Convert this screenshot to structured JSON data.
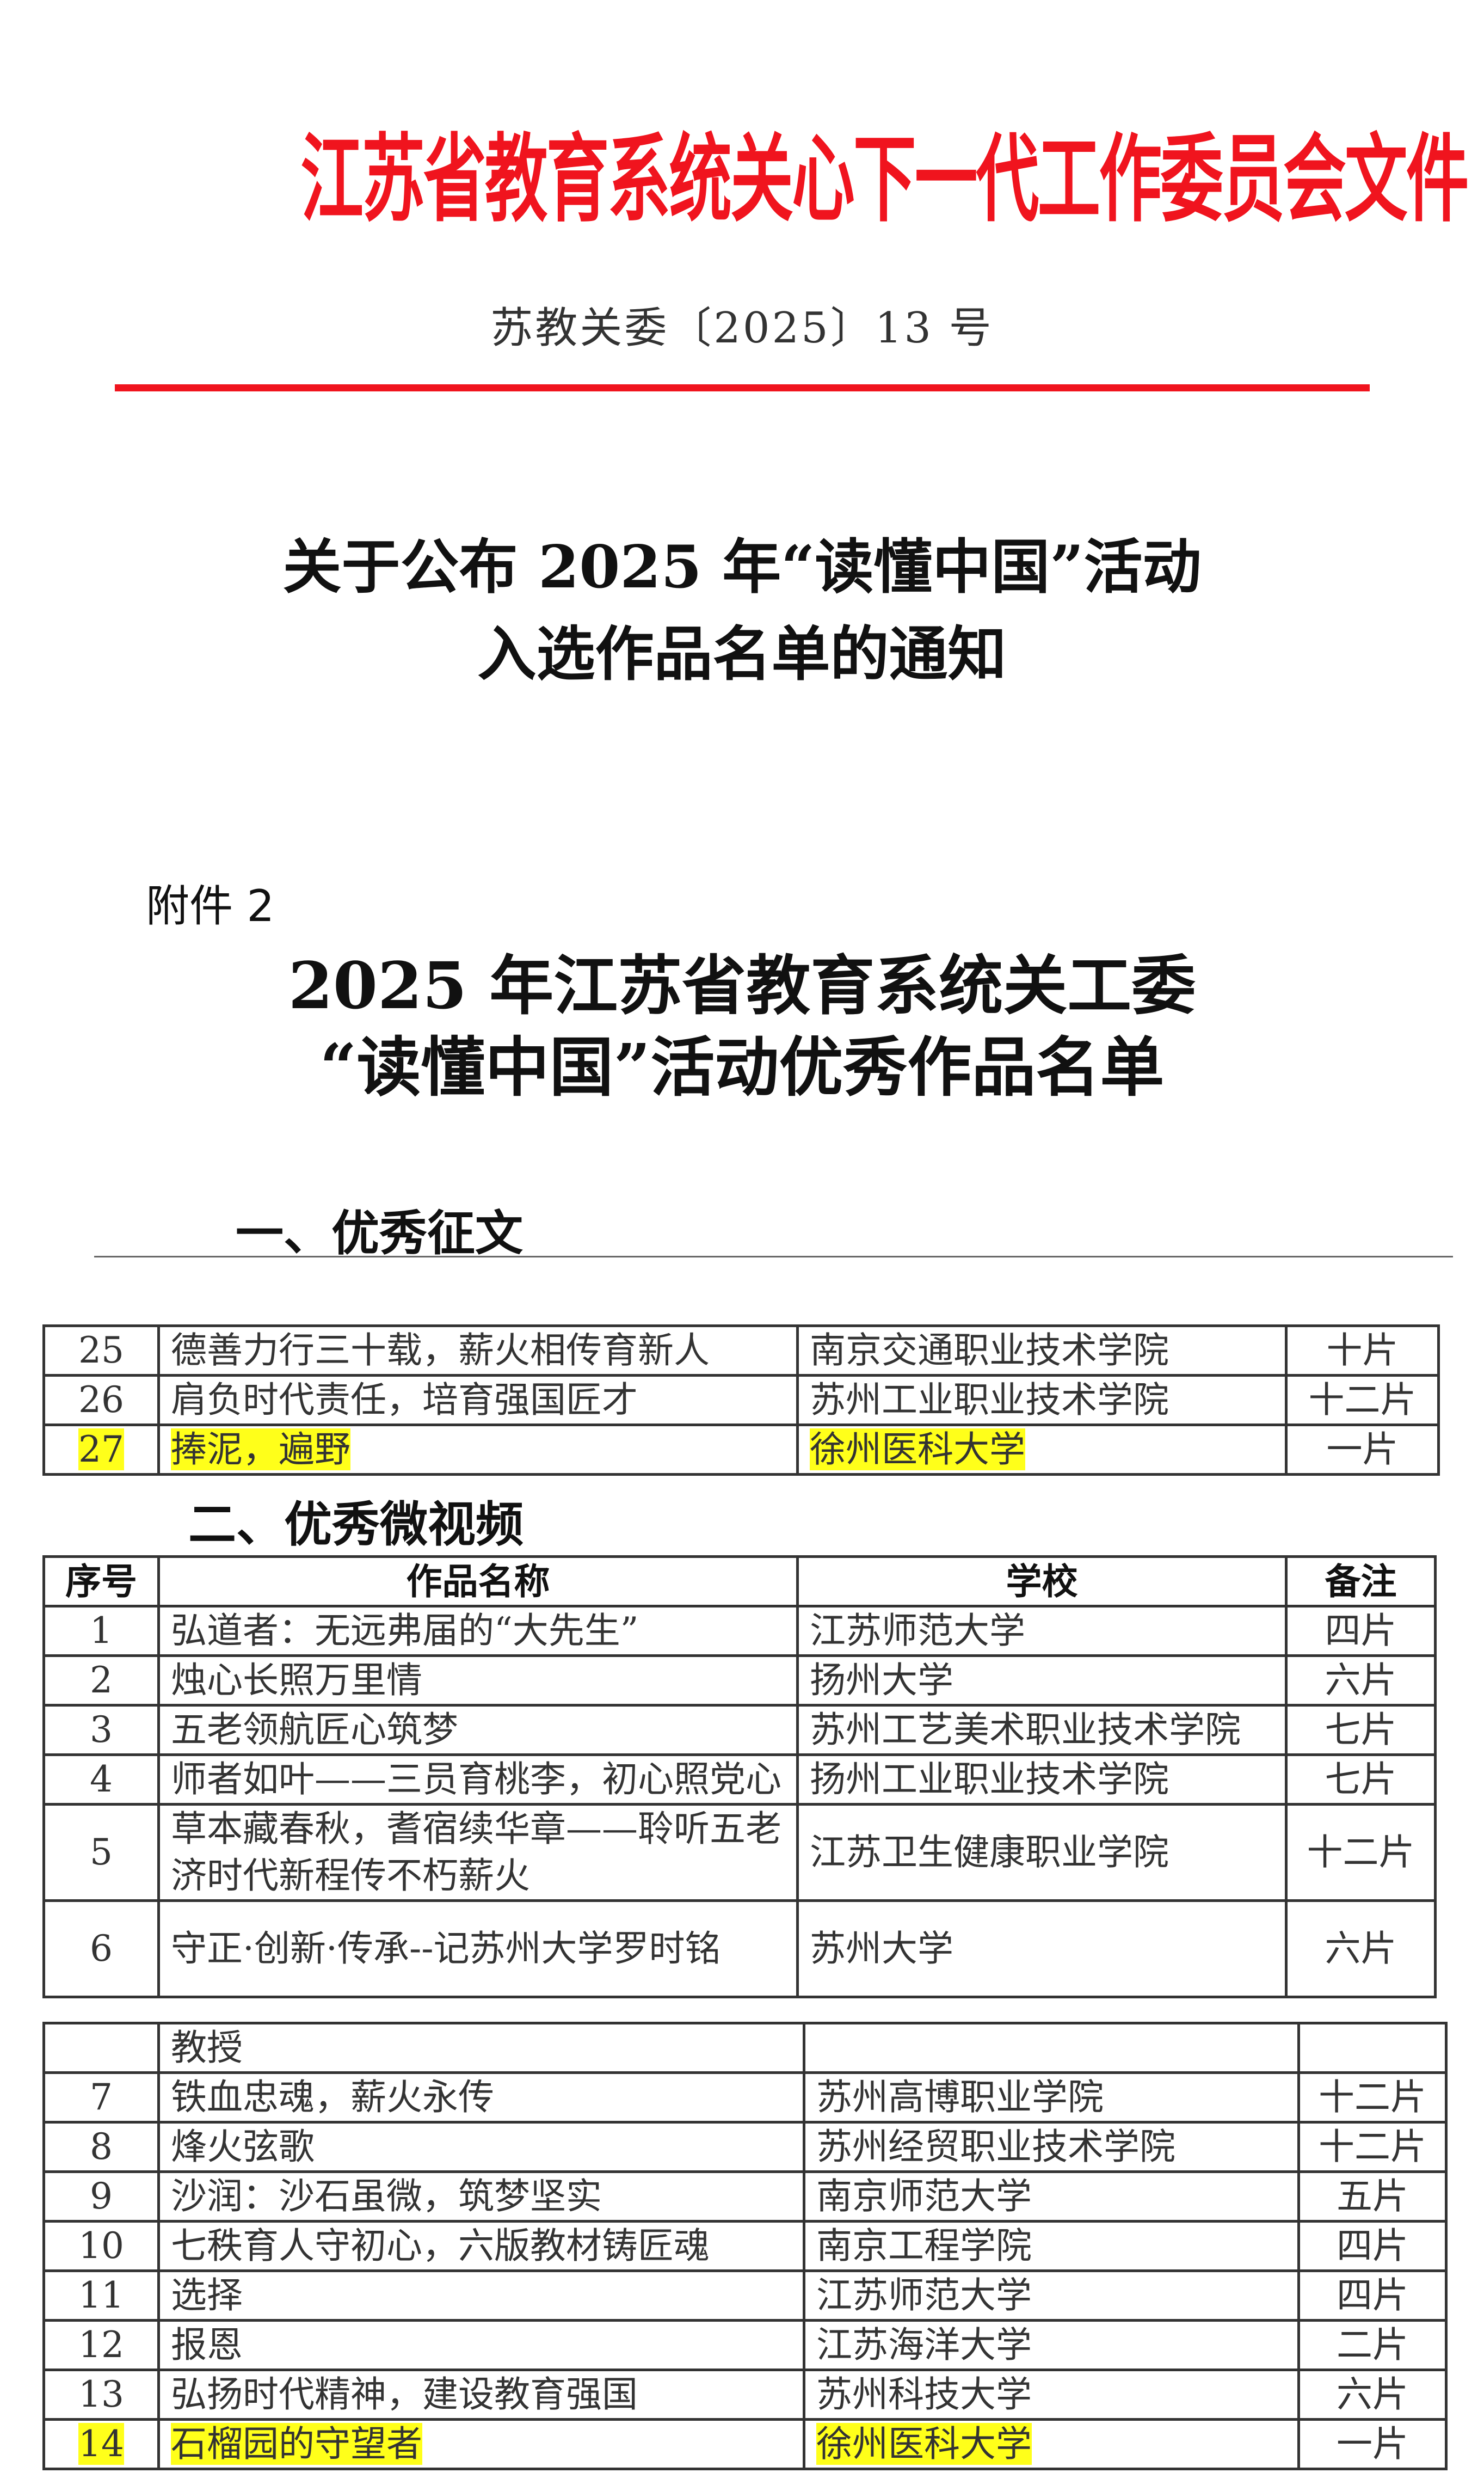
{
  "header": {
    "issuer_title": "江苏省教育系统关心下一代工作委员会文件",
    "document_number": "苏教关委〔2025〕13 号",
    "accent_color": "#f0141e"
  },
  "notice_title": [
    "关于公布 2025 年“读懂中国”活动",
    "入选作品名单的通知"
  ],
  "attachment_label": "附件 2",
  "list_title": [
    "2025 年江苏省教育系统关工委",
    "“读懂中国”活动优秀作品名单"
  ],
  "section1": {
    "heading": "一、优秀征文",
    "rows": [
      {
        "no": "25",
        "title": "德善力行三十载，薪火相传育新人",
        "school": "南京交通职业技术学院",
        "note": "十片",
        "highlight": false
      },
      {
        "no": "26",
        "title": "肩负时代责任，培育强国匠才",
        "school": "苏州工业职业技术学院",
        "note": "十二片",
        "highlight": false
      },
      {
        "no": "27",
        "title": "捧泥，遍野",
        "school": "徐州医科大学",
        "note": "一片",
        "highlight": true
      }
    ]
  },
  "section2": {
    "heading": "二、优秀微视频",
    "columns": [
      "序号",
      "作品名称",
      "学校",
      "备注"
    ],
    "rows": [
      {
        "no": "1",
        "title": "弘道者：无远弗届的“大先生”",
        "school": "江苏师范大学",
        "note": "四片"
      },
      {
        "no": "2",
        "title": "烛心长照万里情",
        "school": "扬州大学",
        "note": "六片"
      },
      {
        "no": "3",
        "title": "五老领航匠心筑梦",
        "school": "苏州工艺美术职业技术学院",
        "note": "七片"
      },
      {
        "no": "4",
        "title": "师者如叶——三员育桃李，初心照党心",
        "school": "扬州工业职业技术学院",
        "note": "七片"
      },
      {
        "no": "5",
        "title": "草本藏春秋，耆宿续华章——聆听五老济时代新程传不朽薪火",
        "school": "江苏卫生健康职业学院",
        "note": "十二片"
      },
      {
        "no": "6",
        "title": "守正·创新·传承--记苏州大学罗时铭",
        "school": "苏州大学",
        "note": "六片"
      }
    ],
    "continued": [
      {
        "no": "",
        "title": "教授",
        "school": "",
        "note": "",
        "highlight": false
      },
      {
        "no": "7",
        "title": "铁血忠魂，薪火永传",
        "school": "苏州高博职业学院",
        "note": "十二片",
        "highlight": false
      },
      {
        "no": "8",
        "title": "烽火弦歌",
        "school": "苏州经贸职业技术学院",
        "note": "十二片",
        "highlight": false
      },
      {
        "no": "9",
        "title": "沙润：沙石虽微，筑梦坚实",
        "school": "南京师范大学",
        "note": "五片",
        "highlight": false
      },
      {
        "no": "10",
        "title": "七秩育人守初心，六版教材铸匠魂",
        "school": "南京工程学院",
        "note": "四片",
        "highlight": false
      },
      {
        "no": "11",
        "title": "选择",
        "school": "江苏师范大学",
        "note": "四片",
        "highlight": false
      },
      {
        "no": "12",
        "title": "报恩",
        "school": "江苏海洋大学",
        "note": "二片",
        "highlight": false
      },
      {
        "no": "13",
        "title": "弘扬时代精神，建设教育强国",
        "school": "苏州科技大学",
        "note": "六片",
        "highlight": false
      },
      {
        "no": "14",
        "title": "石榴园的守望者",
        "school": "徐州医科大学",
        "note": "一片",
        "highlight": true
      }
    ]
  },
  "highlight_color": "#ffff1a"
}
